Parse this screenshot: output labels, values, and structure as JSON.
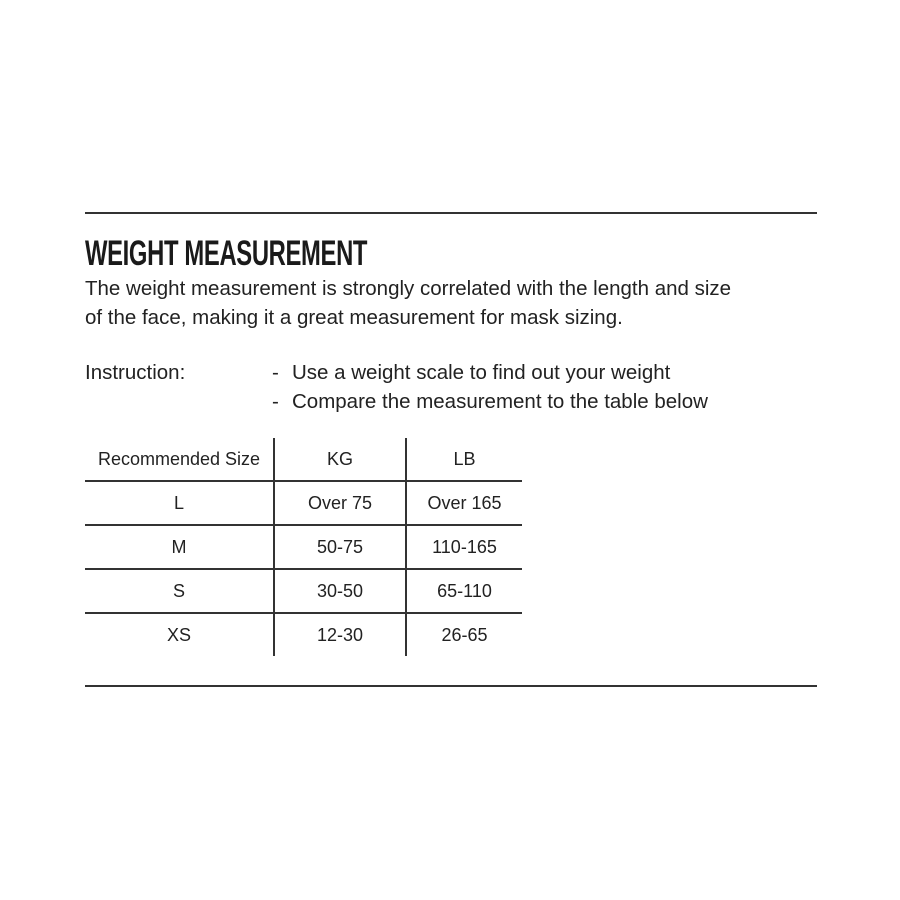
{
  "title": "WEIGHT MEASUREMENT",
  "description": [
    "The weight measurement is strongly correlated with the length and size",
    "of the face, making it a great measurement for mask sizing."
  ],
  "instruction": {
    "label": "Instruction:",
    "items": [
      "Use a weight scale to find out your weight",
      "Compare the measurement to the table below"
    ],
    "bullet": "-"
  },
  "table": {
    "headers": [
      "Recommended Size",
      "KG",
      "LB"
    ],
    "rows": [
      [
        "L",
        "Over 75",
        "Over 165"
      ],
      [
        "M",
        "50-75",
        "110-165"
      ],
      [
        "S",
        "30-50",
        "65-110"
      ],
      [
        "XS",
        "12-30",
        "26-65"
      ]
    ]
  },
  "colors": {
    "text": "#222222",
    "rule": "#333333",
    "background": "#ffffff"
  }
}
